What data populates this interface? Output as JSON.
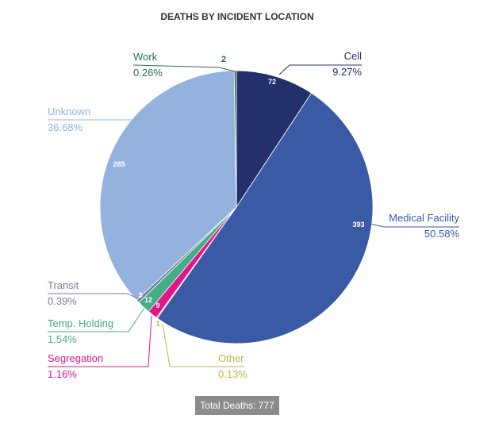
{
  "chart_data": {
    "type": "pie",
    "title": "DEATHS BY INCIDENT LOCATION",
    "slices": [
      {
        "name": "Cell",
        "value": 72,
        "percent": "9.27%",
        "color": "#24306b"
      },
      {
        "name": "Medical Facility",
        "value": 393,
        "percent": "50.58%",
        "color": "#3b5aa6"
      },
      {
        "name": "Other",
        "value": 1,
        "percent": "0.13%",
        "color": "#c8b14a"
      },
      {
        "name": "Segregation",
        "value": 9,
        "percent": "1.16%",
        "color": "#e2168c"
      },
      {
        "name": "Temp. Holding",
        "value": 12,
        "percent": "1.54%",
        "color": "#43ad86"
      },
      {
        "name": "Transit",
        "value": 3,
        "percent": "0.39%",
        "color": "#7b7f99"
      },
      {
        "name": "Unknown",
        "value": 285,
        "percent": "36.68%",
        "color": "#93b3de"
      },
      {
        "name": "Work",
        "value": 2,
        "percent": "0.26%",
        "color": "#2e6e4c"
      }
    ],
    "total_label": "Total Deaths: 777"
  }
}
